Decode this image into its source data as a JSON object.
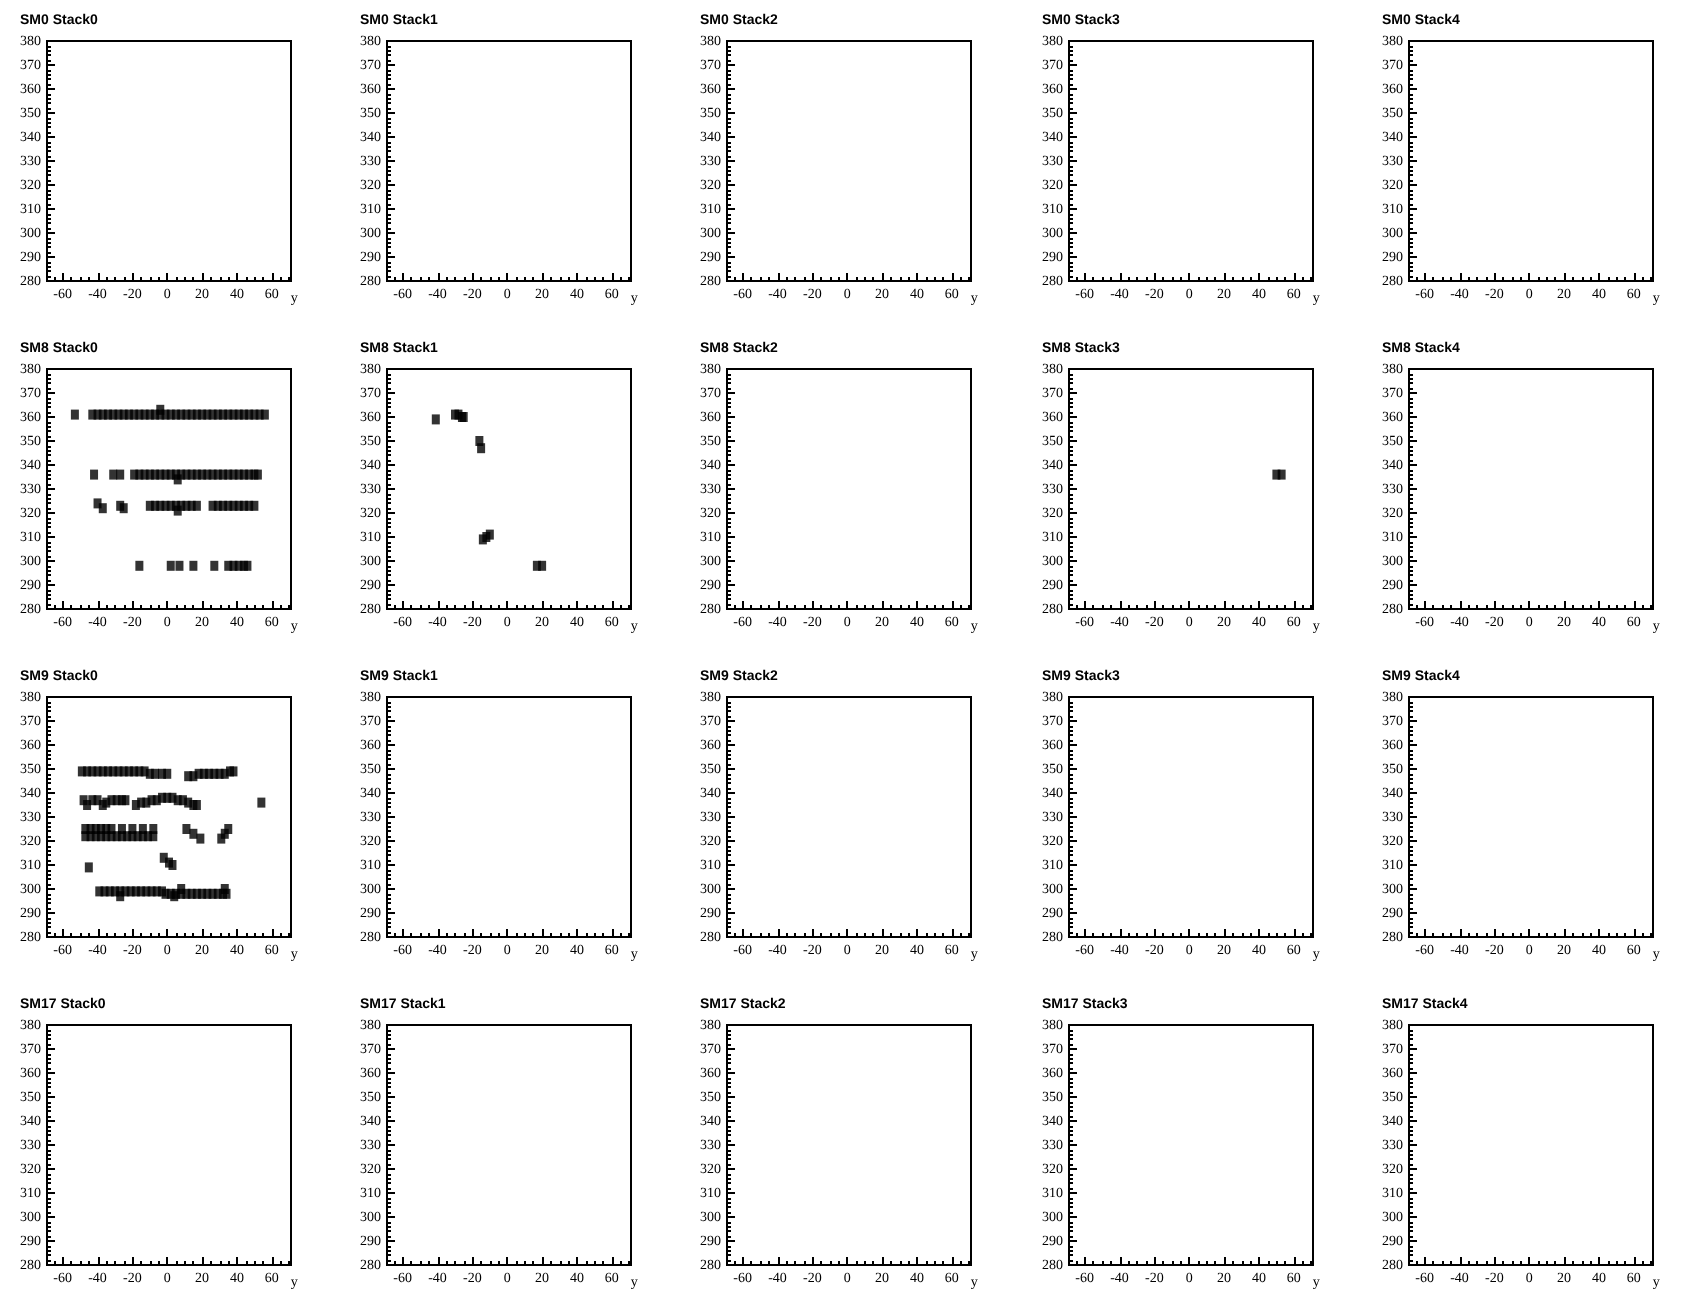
{
  "chart_data": [
    {
      "type": "scatter",
      "title": "SM0 Stack0",
      "xlabel": "y",
      "xlim": [
        -69,
        71
      ],
      "ylim": [
        280,
        380
      ],
      "xticks": [
        -60,
        -40,
        -20,
        0,
        20,
        40,
        60
      ],
      "yticks": [
        280,
        290,
        300,
        310,
        320,
        330,
        340,
        350,
        360,
        370,
        380
      ]
    },
    {
      "type": "scatter",
      "title": "SM0 Stack1",
      "xlabel": "y",
      "xlim": [
        -69,
        71
      ],
      "ylim": [
        280,
        380
      ],
      "xticks": [
        -60,
        -40,
        -20,
        0,
        20,
        40,
        60
      ],
      "yticks": [
        280,
        290,
        300,
        310,
        320,
        330,
        340,
        350,
        360,
        370,
        380
      ]
    },
    {
      "type": "scatter",
      "title": "SM0 Stack2",
      "xlabel": "y",
      "xlim": [
        -69,
        71
      ],
      "ylim": [
        280,
        380
      ],
      "xticks": [
        -60,
        -40,
        -20,
        0,
        20,
        40,
        60
      ],
      "yticks": [
        280,
        290,
        300,
        310,
        320,
        330,
        340,
        350,
        360,
        370,
        380
      ]
    },
    {
      "type": "scatter",
      "title": "SM0 Stack3",
      "xlabel": "y",
      "xlim": [
        -69,
        71
      ],
      "ylim": [
        280,
        380
      ],
      "xticks": [
        -60,
        -40,
        -20,
        0,
        20,
        40,
        60
      ],
      "yticks": [
        280,
        290,
        300,
        310,
        320,
        330,
        340,
        350,
        360,
        370,
        380
      ]
    },
    {
      "type": "scatter",
      "title": "SM0 Stack4",
      "xlabel": "y",
      "xlim": [
        -69,
        71
      ],
      "ylim": [
        280,
        380
      ],
      "xticks": [
        -60,
        -40,
        -20,
        0,
        20,
        40,
        60
      ],
      "yticks": [
        280,
        290,
        300,
        310,
        320,
        330,
        340,
        350,
        360,
        370,
        380
      ]
    },
    {
      "type": "scatter",
      "title": "SM8 Stack0",
      "xlabel": "y",
      "color": "#000000",
      "marker": "square",
      "x": [
        -53,
        -43,
        -40,
        -37,
        -34,
        -31,
        -28,
        -25,
        -22,
        -19,
        -16,
        -13,
        -10,
        -7,
        -4,
        -1,
        2,
        5,
        8,
        11,
        14,
        17,
        20,
        23,
        26,
        29,
        32,
        35,
        38,
        41,
        44,
        47,
        50,
        53,
        56,
        -4,
        -42,
        -31,
        -27,
        -19,
        -16,
        -13,
        -10,
        -7,
        -4,
        -1,
        2,
        5,
        8,
        11,
        14,
        17,
        20,
        23,
        26,
        29,
        32,
        35,
        38,
        41,
        44,
        47,
        50,
        52,
        6,
        -40,
        -37,
        -27,
        -25,
        -10,
        -7,
        -4,
        -1,
        2,
        5,
        8,
        11,
        14,
        17,
        6,
        26,
        29,
        32,
        35,
        38,
        41,
        44,
        47,
        50,
        -16,
        2,
        7,
        15,
        27,
        35,
        38,
        41,
        44,
        46
      ],
      "values": [
        361,
        361,
        361,
        361,
        361,
        361,
        361,
        361,
        361,
        361,
        361,
        361,
        361,
        361,
        361,
        361,
        361,
        361,
        361,
        361,
        361,
        361,
        361,
        361,
        361,
        361,
        361,
        361,
        361,
        361,
        361,
        361,
        361,
        361,
        361,
        363,
        336,
        336,
        336,
        336,
        336,
        336,
        336,
        336,
        336,
        336,
        336,
        336,
        336,
        336,
        336,
        336,
        336,
        336,
        336,
        336,
        336,
        336,
        336,
        336,
        336,
        336,
        336,
        336,
        334,
        324,
        322,
        323,
        322,
        323,
        323,
        323,
        323,
        323,
        323,
        323,
        323,
        323,
        323,
        321,
        323,
        323,
        323,
        323,
        323,
        323,
        323,
        323,
        323,
        298,
        298,
        298,
        298,
        298,
        298,
        298,
        298,
        298,
        298
      ],
      "xlim": [
        -69,
        71
      ],
      "ylim": [
        280,
        380
      ],
      "xticks": [
        -60,
        -40,
        -20,
        0,
        20,
        40,
        60
      ],
      "yticks": [
        280,
        290,
        300,
        310,
        320,
        330,
        340,
        350,
        360,
        370,
        380
      ]
    },
    {
      "type": "scatter",
      "title": "SM8 Stack1",
      "xlabel": "y",
      "color": "#000000",
      "marker": "square",
      "x": [
        -41,
        -30,
        -28,
        -26,
        -25,
        -16,
        -15,
        -14,
        -12,
        -10,
        17,
        20
      ],
      "values": [
        359,
        361,
        361,
        360,
        360,
        350,
        347,
        309,
        310,
        311,
        298,
        298
      ],
      "xlim": [
        -69,
        71
      ],
      "ylim": [
        280,
        380
      ],
      "xticks": [
        -60,
        -40,
        -20,
        0,
        20,
        40,
        60
      ],
      "yticks": [
        280,
        290,
        300,
        310,
        320,
        330,
        340,
        350,
        360,
        370,
        380
      ]
    },
    {
      "type": "scatter",
      "title": "SM8 Stack2",
      "xlabel": "y",
      "xlim": [
        -69,
        71
      ],
      "ylim": [
        280,
        380
      ],
      "xticks": [
        -60,
        -40,
        -20,
        0,
        20,
        40,
        60
      ],
      "yticks": [
        280,
        290,
        300,
        310,
        320,
        330,
        340,
        350,
        360,
        370,
        380
      ]
    },
    {
      "type": "scatter",
      "title": "SM8 Stack3",
      "xlabel": "y",
      "color": "#000000",
      "marker": "square",
      "x": [
        50,
        53
      ],
      "values": [
        336,
        336
      ],
      "xlim": [
        -69,
        71
      ],
      "ylim": [
        280,
        380
      ],
      "xticks": [
        -60,
        -40,
        -20,
        0,
        20,
        40,
        60
      ],
      "yticks": [
        280,
        290,
        300,
        310,
        320,
        330,
        340,
        350,
        360,
        370,
        380
      ]
    },
    {
      "type": "scatter",
      "title": "SM8 Stack4",
      "xlabel": "y",
      "xlim": [
        -69,
        71
      ],
      "ylim": [
        280,
        380
      ],
      "xticks": [
        -60,
        -40,
        -20,
        0,
        20,
        40,
        60
      ],
      "yticks": [
        280,
        290,
        300,
        310,
        320,
        330,
        340,
        350,
        360,
        370,
        380
      ]
    },
    {
      "type": "scatter",
      "title": "SM9 Stack0",
      "xlabel": "y",
      "color": "#000000",
      "marker": "square",
      "x": [
        -49,
        -46,
        -43,
        -40,
        -37,
        -34,
        -31,
        -28,
        -25,
        -22,
        -19,
        -16,
        -13,
        -10,
        -7,
        -3,
        0,
        12,
        15,
        18,
        21,
        24,
        27,
        30,
        33,
        36,
        38,
        -48,
        -46,
        -43,
        -40,
        -37,
        -35,
        -32,
        -29,
        -26,
        -24,
        -18,
        -15,
        -12,
        -9,
        -6,
        -3,
        0,
        3,
        6,
        9,
        12,
        15,
        17,
        54,
        -47,
        -44,
        -41,
        -38,
        -35,
        -32,
        -26,
        -20,
        -14,
        -8,
        -47,
        -44,
        -41,
        -38,
        -35,
        -32,
        -29,
        -26,
        -23,
        -20,
        -17,
        -14,
        -11,
        -8,
        11,
        15,
        19,
        31,
        33,
        35,
        -45,
        -2,
        1,
        3,
        -39,
        -36,
        -33,
        -30,
        -27,
        -24,
        -21,
        -18,
        -15,
        -12,
        -27,
        -9,
        -6,
        -3,
        -1,
        2,
        5,
        8,
        11,
        14,
        17,
        20,
        23,
        26,
        29,
        32,
        34,
        8,
        33,
        4
      ],
      "values": [
        349,
        349,
        349,
        349,
        349,
        349,
        349,
        349,
        349,
        349,
        349,
        349,
        349,
        348,
        348,
        348,
        348,
        347,
        347,
        348,
        348,
        348,
        348,
        348,
        348,
        349,
        349,
        337,
        335,
        337,
        337,
        335,
        336,
        337,
        337,
        337,
        337,
        335,
        336,
        336,
        337,
        337,
        338,
        338,
        338,
        337,
        337,
        336,
        335,
        335,
        336,
        325,
        325,
        325,
        325,
        325,
        325,
        325,
        325,
        325,
        325,
        322,
        322,
        322,
        322,
        322,
        322,
        322,
        322,
        322,
        322,
        322,
        322,
        322,
        322,
        325,
        323,
        321,
        321,
        323,
        325,
        309,
        313,
        311,
        310,
        299,
        299,
        299,
        299,
        299,
        299,
        299,
        299,
        299,
        299,
        297,
        299,
        299,
        299,
        298,
        298,
        298,
        298,
        298,
        298,
        298,
        298,
        298,
        298,
        298,
        298,
        298,
        300,
        300,
        297
      ],
      "xlim": [
        -69,
        71
      ],
      "ylim": [
        280,
        380
      ],
      "xticks": [
        -60,
        -40,
        -20,
        0,
        20,
        40,
        60
      ],
      "yticks": [
        280,
        290,
        300,
        310,
        320,
        330,
        340,
        350,
        360,
        370,
        380
      ]
    },
    {
      "type": "scatter",
      "title": "SM9 Stack1",
      "xlabel": "y",
      "xlim": [
        -69,
        71
      ],
      "ylim": [
        280,
        380
      ],
      "xticks": [
        -60,
        -40,
        -20,
        0,
        20,
        40,
        60
      ],
      "yticks": [
        280,
        290,
        300,
        310,
        320,
        330,
        340,
        350,
        360,
        370,
        380
      ]
    },
    {
      "type": "scatter",
      "title": "SM9 Stack2",
      "xlabel": "y",
      "xlim": [
        -69,
        71
      ],
      "ylim": [
        280,
        380
      ],
      "xticks": [
        -60,
        -40,
        -20,
        0,
        20,
        40,
        60
      ],
      "yticks": [
        280,
        290,
        300,
        310,
        320,
        330,
        340,
        350,
        360,
        370,
        380
      ]
    },
    {
      "type": "scatter",
      "title": "SM9 Stack3",
      "xlabel": "y",
      "xlim": [
        -69,
        71
      ],
      "ylim": [
        280,
        380
      ],
      "xticks": [
        -60,
        -40,
        -20,
        0,
        20,
        40,
        60
      ],
      "yticks": [
        280,
        290,
        300,
        310,
        320,
        330,
        340,
        350,
        360,
        370,
        380
      ]
    },
    {
      "type": "scatter",
      "title": "SM9 Stack4",
      "xlabel": "y",
      "xlim": [
        -69,
        71
      ],
      "ylim": [
        280,
        380
      ],
      "xticks": [
        -60,
        -40,
        -20,
        0,
        20,
        40,
        60
      ],
      "yticks": [
        280,
        290,
        300,
        310,
        320,
        330,
        340,
        350,
        360,
        370,
        380
      ]
    },
    {
      "type": "scatter",
      "title": "SM17 Stack0",
      "xlabel": "y",
      "xlim": [
        -69,
        71
      ],
      "ylim": [
        280,
        380
      ],
      "xticks": [
        -60,
        -40,
        -20,
        0,
        20,
        40,
        60
      ],
      "yticks": [
        280,
        290,
        300,
        310,
        320,
        330,
        340,
        350,
        360,
        370,
        380
      ]
    },
    {
      "type": "scatter",
      "title": "SM17 Stack1",
      "xlabel": "y",
      "xlim": [
        -69,
        71
      ],
      "ylim": [
        280,
        380
      ],
      "xticks": [
        -60,
        -40,
        -20,
        0,
        20,
        40,
        60
      ],
      "yticks": [
        280,
        290,
        300,
        310,
        320,
        330,
        340,
        350,
        360,
        370,
        380
      ]
    },
    {
      "type": "scatter",
      "title": "SM17 Stack2",
      "xlabel": "y",
      "xlim": [
        -69,
        71
      ],
      "ylim": [
        280,
        380
      ],
      "xticks": [
        -60,
        -40,
        -20,
        0,
        20,
        40,
        60
      ],
      "yticks": [
        280,
        290,
        300,
        310,
        320,
        330,
        340,
        350,
        360,
        370,
        380
      ]
    },
    {
      "type": "scatter",
      "title": "SM17 Stack3",
      "xlabel": "y",
      "xlim": [
        -69,
        71
      ],
      "ylim": [
        280,
        380
      ],
      "xticks": [
        -60,
        -40,
        -20,
        0,
        20,
        40,
        60
      ],
      "yticks": [
        280,
        290,
        300,
        310,
        320,
        330,
        340,
        350,
        360,
        370,
        380
      ]
    },
    {
      "type": "scatter",
      "title": "SM17 Stack4",
      "xlabel": "y",
      "xlim": [
        -69,
        71
      ],
      "ylim": [
        280,
        380
      ],
      "xticks": [
        -60,
        -40,
        -20,
        0,
        20,
        40,
        60
      ],
      "yticks": [
        280,
        290,
        300,
        310,
        320,
        330,
        340,
        350,
        360,
        370,
        380
      ]
    }
  ]
}
